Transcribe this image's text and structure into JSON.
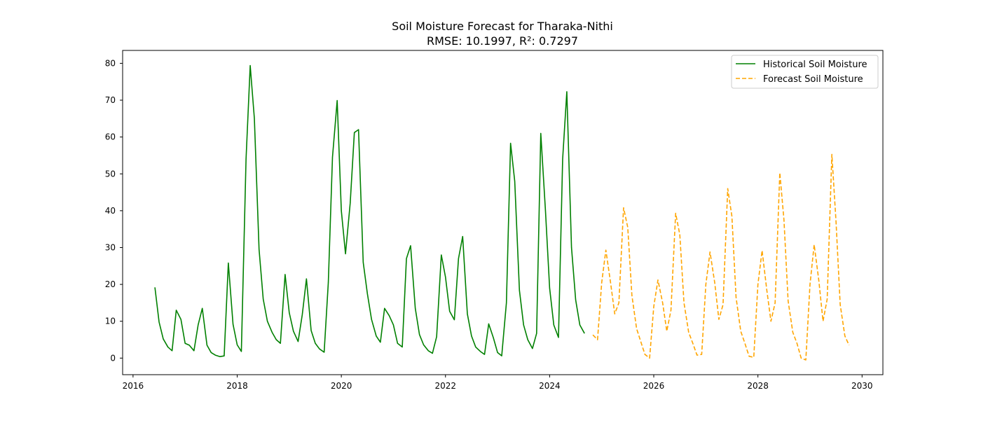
{
  "chart_data": {
    "type": "line",
    "title": "Soil Moisture Forecast for Tharaka-Nithi",
    "subtitle": "RMSE: 10.1997, R²: 0.7297",
    "xlabel": "",
    "ylabel": "",
    "xlim": [
      2015.8,
      2030.4
    ],
    "ylim": [
      -4.5,
      83.5
    ],
    "x_ticks": [
      2016,
      2018,
      2020,
      2022,
      2024,
      2026,
      2028,
      2030
    ],
    "y_ticks": [
      0,
      10,
      20,
      30,
      40,
      50,
      60,
      70,
      80
    ],
    "grid": false,
    "legend_position": "top-right",
    "series": [
      {
        "name": "Historical Soil Moisture",
        "color": "#008000",
        "style": "solid",
        "x": [
          2016.42,
          2016.5,
          2016.58,
          2016.67,
          2016.75,
          2016.83,
          2016.92,
          2017.0,
          2017.08,
          2017.17,
          2017.25,
          2017.33,
          2017.42,
          2017.5,
          2017.58,
          2017.67,
          2017.75,
          2017.83,
          2017.92,
          2018.0,
          2018.08,
          2018.17,
          2018.25,
          2018.33,
          2018.42,
          2018.5,
          2018.58,
          2018.67,
          2018.75,
          2018.83,
          2018.92,
          2019.0,
          2019.08,
          2019.17,
          2019.25,
          2019.33,
          2019.42,
          2019.5,
          2019.58,
          2019.67,
          2019.75,
          2019.83,
          2019.92,
          2020.0,
          2020.08,
          2020.17,
          2020.25,
          2020.33,
          2020.42,
          2020.5,
          2020.58,
          2020.67,
          2020.75,
          2020.83,
          2020.92,
          2021.0,
          2021.08,
          2021.17,
          2021.25,
          2021.33,
          2021.42,
          2021.5,
          2021.58,
          2021.67,
          2021.75,
          2021.83,
          2021.92,
          2022.0,
          2022.08,
          2022.17,
          2022.25,
          2022.33,
          2022.42,
          2022.5,
          2022.58,
          2022.67,
          2022.75,
          2022.83,
          2022.92,
          2023.0,
          2023.08,
          2023.17,
          2023.25,
          2023.33,
          2023.42,
          2023.5,
          2023.58,
          2023.67,
          2023.75,
          2023.83,
          2023.92,
          2024.0,
          2024.08,
          2024.17,
          2024.25,
          2024.33,
          2024.42,
          2024.5,
          2024.58,
          2024.67
        ],
        "values": [
          19.2,
          9.8,
          5.2,
          3.0,
          2.0,
          13.0,
          10.5,
          4.0,
          3.5,
          2.0,
          9.0,
          13.5,
          3.5,
          1.5,
          0.8,
          0.4,
          0.6,
          25.8,
          9.2,
          3.6,
          1.8,
          54.0,
          79.4,
          65.0,
          29.5,
          16.0,
          10.0,
          7.0,
          5.0,
          4.0,
          22.7,
          12.3,
          7.3,
          4.5,
          11.8,
          21.5,
          7.5,
          4.0,
          2.5,
          1.6,
          20.5,
          54.5,
          69.9,
          40.0,
          28.3,
          42.0,
          61.2,
          62.0,
          26.0,
          17.5,
          10.5,
          6.0,
          4.3,
          13.5,
          11.5,
          9.0,
          4.0,
          3.0,
          27.0,
          30.5,
          13.5,
          6.4,
          3.6,
          2.0,
          1.3,
          5.8,
          28.0,
          22.0,
          12.7,
          10.4,
          27.0,
          33.0,
          12.0,
          6.0,
          3.0,
          1.8,
          1.0,
          9.3,
          5.5,
          1.5,
          0.6,
          15.0,
          58.3,
          48.0,
          18.4,
          9.0,
          5.0,
          2.6,
          6.7,
          61.0,
          40.0,
          19.0,
          9.0,
          5.6,
          54.0,
          72.3,
          30.0,
          15.8,
          9.0,
          6.7
        ]
      },
      {
        "name": "Forecast Soil Moisture",
        "color": "#FFA500",
        "style": "dashed",
        "x": [
          2024.83,
          2024.92,
          2025.0,
          2025.08,
          2025.17,
          2025.25,
          2025.33,
          2025.42,
          2025.5,
          2025.58,
          2025.67,
          2025.75,
          2025.83,
          2025.92,
          2026.0,
          2026.08,
          2026.17,
          2026.25,
          2026.33,
          2026.42,
          2026.5,
          2026.58,
          2026.67,
          2026.75,
          2026.83,
          2026.92,
          2027.0,
          2027.08,
          2027.17,
          2027.25,
          2027.33,
          2027.42,
          2027.5,
          2027.58,
          2027.67,
          2027.75,
          2027.83,
          2027.92,
          2028.0,
          2028.08,
          2028.17,
          2028.25,
          2028.33,
          2028.42,
          2028.5,
          2028.58,
          2028.67,
          2028.75,
          2028.83,
          2028.92,
          2029.0,
          2029.08,
          2029.17,
          2029.25,
          2029.33,
          2029.42,
          2029.5,
          2029.58,
          2029.67,
          2029.75
        ],
        "values": [
          6.3,
          5.0,
          20.5,
          29.3,
          20.5,
          12.0,
          15.0,
          40.8,
          35.5,
          17.0,
          8.0,
          4.5,
          1.0,
          0.0,
          14.0,
          21.2,
          15.0,
          7.3,
          13.0,
          39.3,
          33.5,
          15.0,
          7.0,
          4.0,
          0.8,
          1.0,
          20.0,
          28.8,
          20.5,
          10.5,
          14.5,
          46.0,
          38.5,
          16.5,
          7.3,
          4.0,
          0.5,
          0.2,
          20.0,
          29.2,
          18.5,
          10.0,
          15.0,
          50.3,
          37.5,
          15.5,
          7.0,
          4.0,
          0.0,
          -0.5,
          20.0,
          30.8,
          21.0,
          10.0,
          16.0,
          55.3,
          37.0,
          14.5,
          6.0,
          3.5
        ]
      }
    ]
  }
}
